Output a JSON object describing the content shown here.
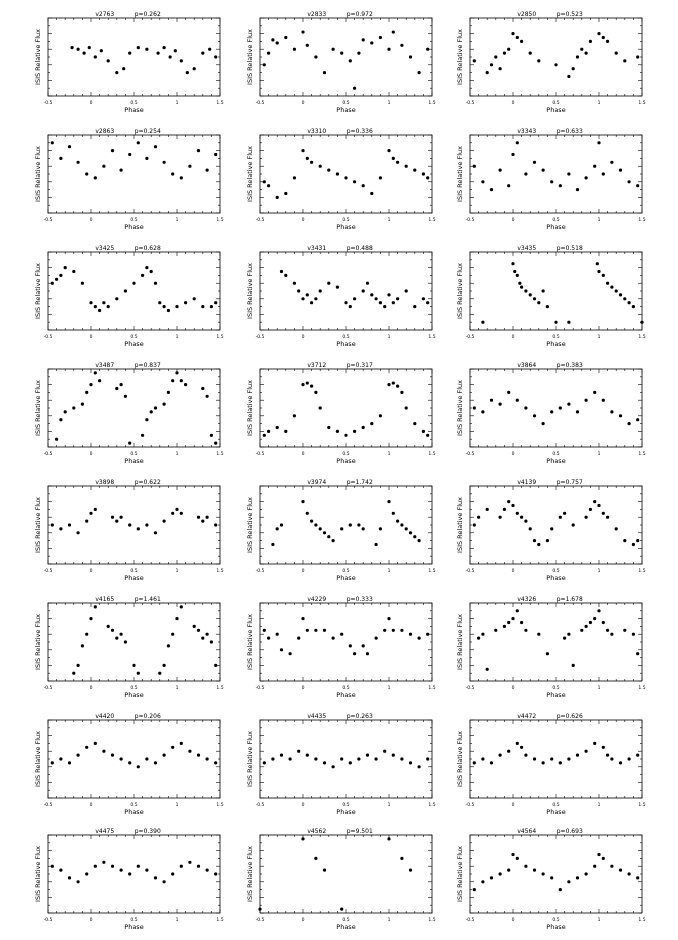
{
  "figure": {
    "xlabel": "Phase",
    "ylabel": "ISIS Relative Flux",
    "xticks": [
      "-0.5",
      "0",
      "0.5",
      "1",
      "1.5"
    ],
    "xlim": [
      -0.5,
      1.5
    ],
    "ylim": [
      0,
      1
    ]
  },
  "chart_data": [
    {
      "type": "scatter",
      "title": "v2763",
      "period_label": "p=0.262",
      "x": [
        -0.22,
        -0.15,
        -0.08,
        -0.02,
        0.05,
        0.12,
        0.2,
        0.3,
        0.38,
        0.45,
        0.55,
        0.65,
        0.78,
        0.85,
        0.92,
        0.98,
        1.05,
        1.12,
        1.2,
        1.3,
        1.38,
        1.45
      ],
      "y": [
        0.62,
        0.6,
        0.55,
        0.62,
        0.5,
        0.58,
        0.45,
        0.3,
        0.35,
        0.55,
        0.62,
        0.6,
        0.55,
        0.62,
        0.5,
        0.58,
        0.45,
        0.3,
        0.35,
        0.55,
        0.6,
        0.5
      ]
    },
    {
      "type": "scatter",
      "title": "v2833",
      "period_label": "p=0.972",
      "x": [
        -0.45,
        -0.4,
        -0.35,
        -0.3,
        -0.2,
        -0.1,
        0.0,
        0.05,
        0.15,
        0.25,
        0.35,
        0.45,
        0.55,
        0.6,
        0.65,
        0.7,
        0.8,
        0.9,
        1.0,
        1.05,
        1.15,
        1.25,
        1.35,
        1.45
      ],
      "y": [
        0.4,
        0.55,
        0.72,
        0.68,
        0.75,
        0.6,
        0.82,
        0.65,
        0.5,
        0.3,
        0.6,
        0.55,
        0.45,
        0.1,
        0.55,
        0.72,
        0.68,
        0.75,
        0.6,
        0.82,
        0.65,
        0.5,
        0.3,
        0.6
      ]
    },
    {
      "type": "scatter",
      "title": "v2850",
      "period_label": "p=0.523",
      "x": [
        -0.45,
        -0.3,
        -0.25,
        -0.2,
        -0.15,
        -0.1,
        -0.05,
        0.0,
        0.05,
        0.1,
        0.2,
        0.3,
        0.5,
        0.65,
        0.7,
        0.75,
        0.8,
        0.85,
        0.9,
        1.0,
        1.05,
        1.1,
        1.2,
        1.3,
        1.45
      ],
      "y": [
        0.45,
        0.3,
        0.4,
        0.5,
        0.35,
        0.55,
        0.6,
        0.8,
        0.75,
        0.7,
        0.55,
        0.45,
        0.4,
        0.25,
        0.35,
        0.5,
        0.6,
        0.55,
        0.7,
        0.8,
        0.75,
        0.7,
        0.55,
        0.45,
        0.5
      ]
    },
    {
      "type": "scatter",
      "title": "v2863",
      "period_label": "p=0.254",
      "x": [
        -0.45,
        -0.35,
        -0.25,
        -0.15,
        -0.05,
        0.05,
        0.15,
        0.25,
        0.35,
        0.45,
        0.55,
        0.65,
        0.75,
        0.85,
        0.95,
        1.05,
        1.15,
        1.25,
        1.35,
        1.45
      ],
      "y": [
        0.9,
        0.7,
        0.85,
        0.65,
        0.5,
        0.45,
        0.6,
        0.8,
        0.55,
        0.75,
        0.9,
        0.7,
        0.85,
        0.65,
        0.5,
        0.45,
        0.6,
        0.8,
        0.55,
        0.75
      ]
    },
    {
      "type": "scatter",
      "title": "v3310",
      "period_label": "p=0.336",
      "x": [
        -0.45,
        -0.4,
        -0.3,
        -0.2,
        -0.1,
        0.0,
        0.05,
        0.1,
        0.2,
        0.3,
        0.4,
        0.5,
        0.6,
        0.7,
        0.8,
        0.9,
        1.0,
        1.05,
        1.1,
        1.2,
        1.3,
        1.4,
        1.45
      ],
      "y": [
        0.4,
        0.35,
        0.2,
        0.25,
        0.45,
        0.8,
        0.7,
        0.65,
        0.6,
        0.55,
        0.5,
        0.45,
        0.4,
        0.35,
        0.25,
        0.45,
        0.8,
        0.7,
        0.65,
        0.6,
        0.55,
        0.5,
        0.45
      ]
    },
    {
      "type": "scatter",
      "title": "v3343",
      "period_label": "p=0.633",
      "x": [
        -0.45,
        -0.35,
        -0.25,
        -0.15,
        -0.05,
        0.0,
        0.05,
        0.15,
        0.25,
        0.35,
        0.45,
        0.55,
        0.65,
        0.75,
        0.85,
        0.95,
        1.0,
        1.05,
        1.15,
        1.25,
        1.35,
        1.45
      ],
      "y": [
        0.6,
        0.4,
        0.3,
        0.55,
        0.35,
        0.75,
        0.9,
        0.5,
        0.65,
        0.55,
        0.4,
        0.35,
        0.5,
        0.3,
        0.45,
        0.6,
        0.9,
        0.5,
        0.65,
        0.55,
        0.4,
        0.35
      ]
    },
    {
      "type": "scatter",
      "title": "v3425",
      "period_label": "p=0.628",
      "x": [
        -0.45,
        -0.4,
        -0.35,
        -0.3,
        -0.2,
        -0.1,
        0.0,
        0.05,
        0.1,
        0.15,
        0.2,
        0.3,
        0.4,
        0.5,
        0.6,
        0.65,
        0.7,
        0.75,
        0.8,
        0.85,
        0.9,
        1.0,
        1.1,
        1.2,
        1.3,
        1.4,
        1.45
      ],
      "y": [
        0.6,
        0.65,
        0.7,
        0.8,
        0.75,
        0.6,
        0.35,
        0.3,
        0.25,
        0.35,
        0.3,
        0.4,
        0.5,
        0.6,
        0.7,
        0.8,
        0.75,
        0.6,
        0.35,
        0.3,
        0.25,
        0.3,
        0.35,
        0.4,
        0.3,
        0.3,
        0.35
      ]
    },
    {
      "type": "scatter",
      "title": "v3431",
      "period_label": "p=0.488",
      "x": [
        -0.25,
        -0.2,
        -0.1,
        -0.05,
        0.0,
        0.05,
        0.1,
        0.15,
        0.2,
        0.3,
        0.4,
        0.5,
        0.55,
        0.6,
        0.7,
        0.75,
        0.8,
        0.85,
        0.9,
        0.95,
        1.0,
        1.05,
        1.1,
        1.2,
        1.3,
        1.4,
        1.45
      ],
      "y": [
        0.75,
        0.7,
        0.6,
        0.5,
        0.4,
        0.45,
        0.35,
        0.4,
        0.5,
        0.6,
        0.55,
        0.35,
        0.3,
        0.4,
        0.5,
        0.6,
        0.45,
        0.4,
        0.35,
        0.3,
        0.45,
        0.35,
        0.4,
        0.5,
        0.3,
        0.4,
        0.35
      ]
    },
    {
      "type": "scatter",
      "title": "v3435",
      "period_label": "p=0.518",
      "x": [
        -0.35,
        0.0,
        0.02,
        0.05,
        0.08,
        0.1,
        0.15,
        0.2,
        0.25,
        0.3,
        0.35,
        0.4,
        0.5,
        0.65,
        0.98,
        1.0,
        1.05,
        1.1,
        1.15,
        1.2,
        1.25,
        1.3,
        1.35,
        1.4,
        1.5
      ],
      "y": [
        0.1,
        0.85,
        0.75,
        0.7,
        0.6,
        0.55,
        0.5,
        0.45,
        0.4,
        0.35,
        0.5,
        0.3,
        0.1,
        0.1,
        0.85,
        0.75,
        0.7,
        0.6,
        0.55,
        0.5,
        0.45,
        0.4,
        0.35,
        0.3,
        0.1
      ]
    },
    {
      "type": "scatter",
      "title": "v3487",
      "period_label": "p=0.837",
      "x": [
        -0.4,
        -0.35,
        -0.3,
        -0.2,
        -0.1,
        -0.05,
        0.0,
        0.05,
        0.1,
        0.3,
        0.35,
        0.4,
        0.45,
        0.6,
        0.65,
        0.7,
        0.75,
        0.85,
        0.9,
        0.95,
        1.0,
        1.05,
        1.1,
        1.3,
        1.35,
        1.4,
        1.45
      ],
      "y": [
        0.1,
        0.35,
        0.45,
        0.5,
        0.55,
        0.7,
        0.8,
        0.95,
        0.85,
        0.75,
        0.8,
        0.65,
        0.05,
        0.15,
        0.35,
        0.45,
        0.5,
        0.55,
        0.7,
        0.85,
        0.95,
        0.85,
        0.8,
        0.75,
        0.65,
        0.15,
        0.05
      ]
    },
    {
      "type": "scatter",
      "title": "v3712",
      "period_label": "p=0.317",
      "x": [
        -0.45,
        -0.4,
        -0.3,
        -0.2,
        -0.1,
        0.0,
        0.05,
        0.1,
        0.15,
        0.2,
        0.3,
        0.4,
        0.5,
        0.6,
        0.7,
        0.8,
        0.9,
        1.0,
        1.05,
        1.1,
        1.15,
        1.2,
        1.3,
        1.4,
        1.45
      ],
      "y": [
        0.15,
        0.2,
        0.25,
        0.2,
        0.4,
        0.8,
        0.82,
        0.78,
        0.7,
        0.5,
        0.25,
        0.2,
        0.15,
        0.2,
        0.25,
        0.3,
        0.4,
        0.8,
        0.82,
        0.78,
        0.7,
        0.5,
        0.3,
        0.2,
        0.15
      ]
    },
    {
      "type": "scatter",
      "title": "v3864",
      "period_label": "p=0.383",
      "x": [
        -0.45,
        -0.35,
        -0.25,
        -0.15,
        -0.05,
        0.05,
        0.15,
        0.25,
        0.35,
        0.45,
        0.55,
        0.65,
        0.75,
        0.85,
        0.95,
        1.05,
        1.15,
        1.25,
        1.35,
        1.45
      ],
      "y": [
        0.5,
        0.45,
        0.6,
        0.55,
        0.7,
        0.6,
        0.5,
        0.4,
        0.3,
        0.45,
        0.5,
        0.55,
        0.45,
        0.6,
        0.7,
        0.6,
        0.45,
        0.4,
        0.3,
        0.35
      ]
    },
    {
      "type": "scatter",
      "title": "v3898",
      "period_label": "p=0.622",
      "x": [
        -0.45,
        -0.35,
        -0.25,
        -0.15,
        -0.05,
        0.0,
        0.05,
        0.25,
        0.3,
        0.35,
        0.45,
        0.55,
        0.65,
        0.75,
        0.85,
        0.95,
        1.0,
        1.05,
        1.25,
        1.3,
        1.35,
        1.45
      ],
      "y": [
        0.5,
        0.45,
        0.5,
        0.4,
        0.55,
        0.65,
        0.7,
        0.6,
        0.55,
        0.6,
        0.5,
        0.45,
        0.5,
        0.4,
        0.55,
        0.65,
        0.7,
        0.65,
        0.6,
        0.55,
        0.6,
        0.5
      ]
    },
    {
      "type": "scatter",
      "title": "v3974",
      "period_label": "p=1.742",
      "x": [
        -0.35,
        -0.3,
        -0.25,
        0.0,
        0.05,
        0.1,
        0.15,
        0.2,
        0.25,
        0.3,
        0.35,
        0.45,
        0.55,
        0.65,
        0.7,
        0.85,
        0.9,
        1.0,
        1.05,
        1.1,
        1.15,
        1.2,
        1.25,
        1.3,
        1.35
      ],
      "y": [
        0.25,
        0.45,
        0.5,
        0.8,
        0.65,
        0.55,
        0.5,
        0.45,
        0.4,
        0.35,
        0.3,
        0.45,
        0.5,
        0.5,
        0.45,
        0.25,
        0.45,
        0.8,
        0.65,
        0.55,
        0.5,
        0.45,
        0.4,
        0.35,
        0.3
      ]
    },
    {
      "type": "scatter",
      "title": "v4139",
      "period_label": "p=0.757",
      "x": [
        -0.45,
        -0.4,
        -0.3,
        -0.15,
        -0.1,
        -0.05,
        0.0,
        0.05,
        0.1,
        0.15,
        0.2,
        0.25,
        0.3,
        0.4,
        0.45,
        0.55,
        0.6,
        0.7,
        0.85,
        0.9,
        0.95,
        1.0,
        1.05,
        1.1,
        1.2,
        1.3,
        1.4,
        1.45
      ],
      "y": [
        0.5,
        0.6,
        0.7,
        0.6,
        0.7,
        0.8,
        0.75,
        0.65,
        0.6,
        0.55,
        0.45,
        0.3,
        0.25,
        0.3,
        0.45,
        0.6,
        0.65,
        0.5,
        0.6,
        0.7,
        0.8,
        0.75,
        0.65,
        0.6,
        0.45,
        0.3,
        0.25,
        0.3
      ]
    },
    {
      "type": "scatter",
      "title": "v4165",
      "period_label": "p=1.461",
      "x": [
        -0.2,
        -0.15,
        -0.1,
        -0.05,
        0.0,
        0.05,
        0.2,
        0.25,
        0.3,
        0.35,
        0.4,
        0.5,
        0.55,
        0.8,
        0.85,
        0.9,
        0.95,
        1.0,
        1.05,
        1.2,
        1.25,
        1.3,
        1.35,
        1.4,
        1.45
      ],
      "y": [
        0.1,
        0.2,
        0.45,
        0.6,
        0.8,
        0.95,
        0.7,
        0.65,
        0.55,
        0.6,
        0.5,
        0.2,
        0.1,
        0.1,
        0.2,
        0.45,
        0.6,
        0.8,
        0.95,
        0.7,
        0.65,
        0.55,
        0.6,
        0.5,
        0.2
      ]
    },
    {
      "type": "scatter",
      "title": "v4229",
      "period_label": "p=0.333",
      "x": [
        -0.45,
        -0.4,
        -0.3,
        -0.25,
        -0.15,
        -0.05,
        0.0,
        0.05,
        0.15,
        0.25,
        0.35,
        0.45,
        0.55,
        0.6,
        0.7,
        0.75,
        0.85,
        0.95,
        1.0,
        1.05,
        1.15,
        1.25,
        1.35,
        1.45
      ],
      "y": [
        0.65,
        0.55,
        0.6,
        0.4,
        0.35,
        0.55,
        0.8,
        0.65,
        0.65,
        0.65,
        0.55,
        0.6,
        0.45,
        0.35,
        0.45,
        0.35,
        0.55,
        0.65,
        0.8,
        0.65,
        0.65,
        0.6,
        0.55,
        0.6
      ]
    },
    {
      "type": "scatter",
      "title": "v4326",
      "period_label": "p=1.678",
      "x": [
        -0.4,
        -0.35,
        -0.3,
        -0.2,
        -0.1,
        -0.05,
        0.0,
        0.05,
        0.1,
        0.15,
        0.3,
        0.4,
        0.6,
        0.65,
        0.7,
        0.8,
        0.85,
        0.9,
        0.95,
        1.0,
        1.05,
        1.1,
        1.15,
        1.3,
        1.4,
        1.45
      ],
      "y": [
        0.55,
        0.6,
        0.15,
        0.65,
        0.7,
        0.75,
        0.8,
        0.9,
        0.75,
        0.65,
        0.6,
        0.35,
        0.55,
        0.6,
        0.2,
        0.65,
        0.7,
        0.75,
        0.8,
        0.9,
        0.75,
        0.65,
        0.6,
        0.65,
        0.6,
        0.35
      ]
    },
    {
      "type": "scatter",
      "title": "v4420",
      "period_label": "p=0.206",
      "x": [
        -0.45,
        -0.35,
        -0.25,
        -0.15,
        -0.05,
        0.05,
        0.15,
        0.25,
        0.35,
        0.45,
        0.55,
        0.65,
        0.75,
        0.85,
        0.95,
        1.05,
        1.15,
        1.25,
        1.35,
        1.45
      ],
      "y": [
        0.45,
        0.5,
        0.45,
        0.55,
        0.65,
        0.7,
        0.6,
        0.55,
        0.5,
        0.45,
        0.4,
        0.5,
        0.45,
        0.55,
        0.65,
        0.7,
        0.6,
        0.55,
        0.5,
        0.45
      ]
    },
    {
      "type": "scatter",
      "title": "v4435",
      "period_label": "p=0.263",
      "x": [
        -0.45,
        -0.35,
        -0.25,
        -0.15,
        -0.05,
        0.05,
        0.15,
        0.25,
        0.35,
        0.45,
        0.55,
        0.65,
        0.75,
        0.85,
        0.95,
        1.05,
        1.15,
        1.25,
        1.35,
        1.45
      ],
      "y": [
        0.45,
        0.5,
        0.55,
        0.5,
        0.6,
        0.55,
        0.5,
        0.45,
        0.4,
        0.5,
        0.45,
        0.5,
        0.55,
        0.5,
        0.6,
        0.55,
        0.5,
        0.45,
        0.4,
        0.5
      ]
    },
    {
      "type": "scatter",
      "title": "v4472",
      "period_label": "p=0.626",
      "x": [
        -0.45,
        -0.35,
        -0.25,
        -0.15,
        -0.05,
        0.05,
        0.1,
        0.15,
        0.25,
        0.35,
        0.45,
        0.55,
        0.65,
        0.75,
        0.85,
        0.95,
        1.05,
        1.1,
        1.15,
        1.25,
        1.35,
        1.45
      ],
      "y": [
        0.45,
        0.5,
        0.45,
        0.55,
        0.6,
        0.7,
        0.65,
        0.55,
        0.5,
        0.45,
        0.5,
        0.45,
        0.5,
        0.55,
        0.6,
        0.7,
        0.65,
        0.55,
        0.5,
        0.45,
        0.5,
        0.55
      ]
    },
    {
      "type": "scatter",
      "title": "v4475",
      "period_label": "p=0.390",
      "x": [
        -0.45,
        -0.35,
        -0.25,
        -0.15,
        -0.05,
        0.05,
        0.15,
        0.25,
        0.35,
        0.45,
        0.55,
        0.65,
        0.75,
        0.85,
        0.95,
        1.05,
        1.15,
        1.25,
        1.35,
        1.45
      ],
      "y": [
        0.6,
        0.55,
        0.45,
        0.4,
        0.5,
        0.6,
        0.65,
        0.6,
        0.55,
        0.5,
        0.6,
        0.55,
        0.45,
        0.4,
        0.5,
        0.6,
        0.65,
        0.6,
        0.55,
        0.5
      ]
    },
    {
      "type": "scatter",
      "title": "v4562",
      "period_label": "p=9.501",
      "x": [
        -0.5,
        0.0,
        0.15,
        0.25,
        0.45,
        1.0,
        1.15,
        1.25
      ],
      "y": [
        0.05,
        0.95,
        0.7,
        0.55,
        0.05,
        0.95,
        0.7,
        0.55
      ]
    },
    {
      "type": "scatter",
      "title": "v4564",
      "period_label": "p=0.693",
      "x": [
        -0.45,
        -0.35,
        -0.25,
        -0.15,
        -0.05,
        0.0,
        0.05,
        0.15,
        0.25,
        0.35,
        0.45,
        0.55,
        0.65,
        0.75,
        0.85,
        0.95,
        1.0,
        1.05,
        1.15,
        1.25,
        1.35,
        1.45
      ],
      "y": [
        0.3,
        0.4,
        0.45,
        0.5,
        0.55,
        0.75,
        0.7,
        0.6,
        0.55,
        0.5,
        0.45,
        0.3,
        0.4,
        0.45,
        0.5,
        0.6,
        0.75,
        0.7,
        0.6,
        0.55,
        0.5,
        0.45
      ]
    }
  ]
}
